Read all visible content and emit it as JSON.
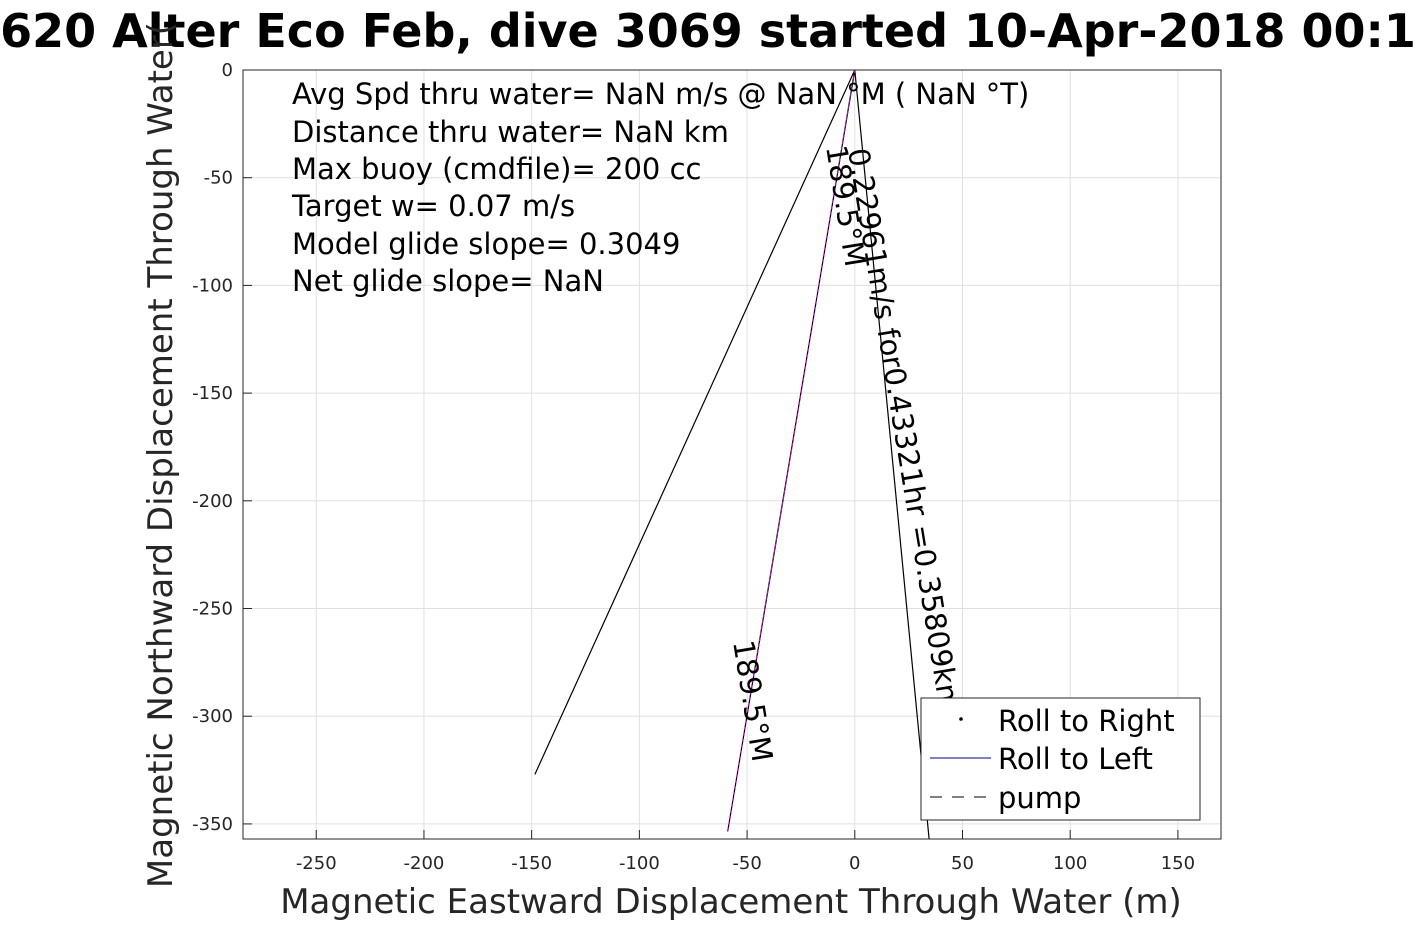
{
  "chart_data": {
    "type": "line",
    "title": "620 Alter Eco Feb, dive 3069 started 10-Apr-2018 00:1",
    "xlabel": "Magnetic Eastward Displacement Through Water (m)",
    "ylabel": "Magnetic Northward Displacement Through Water(",
    "xlim": [
      -284,
      170
    ],
    "ylim": [
      -357,
      0
    ],
    "xticks": [
      -250,
      -200,
      -150,
      -100,
      -50,
      0,
      50,
      100,
      150
    ],
    "yticks": [
      0,
      -50,
      -100,
      -150,
      -200,
      -250,
      -300,
      -350
    ],
    "grid": true,
    "info_lines": [
      "Avg Spd thru water=   NaN m/s @   NaN °M (  NaN °T)",
      "Distance thru water=   NaN km",
      "Max buoy (cmdfile)= 200 cc",
      "Target w= 0.07 m/s",
      "Model glide slope= 0.3049",
      "Net glide slope=    NaN"
    ],
    "annotations": [
      "0.22961m/s for0.43321hr =0.35809km",
      "189.5°M",
      "189.5°M"
    ],
    "series": [
      {
        "name": "Roll to Right",
        "color": "#000000",
        "style": "dot",
        "x": [],
        "y": []
      },
      {
        "name": "Roll to Left",
        "color": "#00008b",
        "style": "solid",
        "x": [],
        "y": []
      },
      {
        "name": "pump",
        "color": "#000000",
        "style": "dashed",
        "x": [],
        "y": []
      }
    ],
    "lines": [
      {
        "color": "#000000",
        "x": [
          0,
          -148.5
        ],
        "y": [
          0,
          -327
        ]
      },
      {
        "color": "#000000",
        "x": [
          0,
          34.5
        ],
        "y": [
          0,
          -357
        ]
      },
      {
        "color": "#000000",
        "x": [
          0,
          -59
        ],
        "y": [
          0,
          -353.5
        ]
      },
      {
        "color": "#cc00cc",
        "x": [
          0,
          -59
        ],
        "y": [
          0,
          -353.5
        ],
        "dashed": true
      }
    ],
    "legend_position": "bottom-right"
  }
}
